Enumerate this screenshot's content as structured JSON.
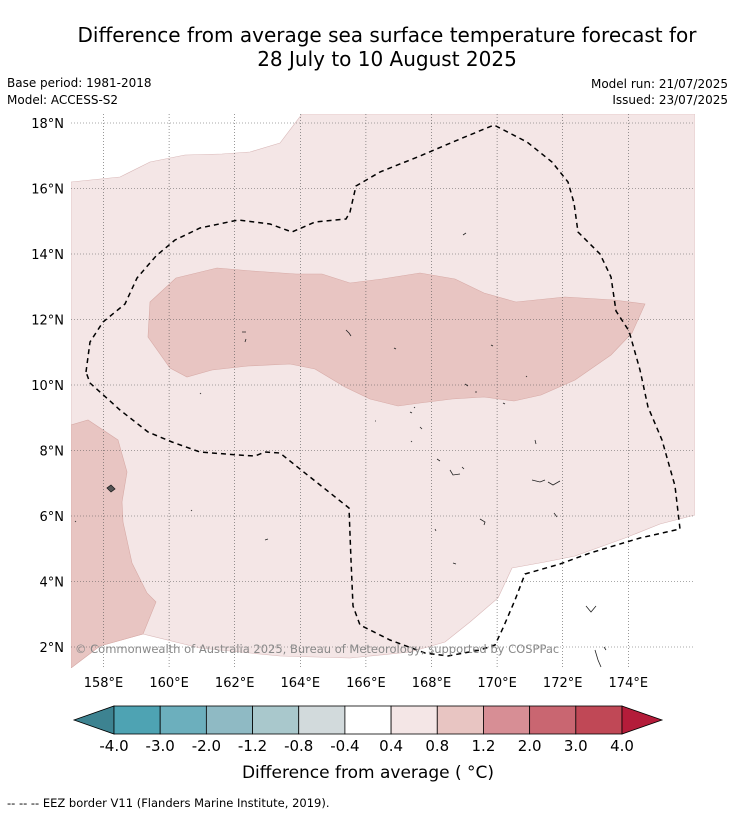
{
  "title_line1": "Difference from average sea surface temperature forecast for",
  "title_line2": "28 July to 10 August 2025",
  "base_period": "Base period: 1981-2018",
  "model": "Model: ACCESS-S2",
  "model_run": "Model run: 21/07/2025",
  "issued": "Issued: 23/07/2025",
  "lat_labels": [
    "18°N",
    "16°N",
    "14°N",
    "12°N",
    "10°N",
    "8°N",
    "6°N",
    "4°N",
    "2°N"
  ],
  "lon_labels": [
    "158°E",
    "160°E",
    "162°E",
    "164°E",
    "166°E",
    "168°E",
    "170°E",
    "172°E",
    "174°E"
  ],
  "copyright": "© Commonwealth of Australia 2025, Bureau of Meteorology, supported by COSPPac",
  "colorbar": {
    "ticks": [
      "-4.0",
      "-3.0",
      "-2.0",
      "-1.2",
      "-0.8",
      "-0.4",
      "0.4",
      "0.8",
      "1.2",
      "2.0",
      "3.0",
      "4.0"
    ],
    "colors": [
      "#3d8391",
      "#4ea3b3",
      "#6cafbd",
      "#8fbac4",
      "#a9c8cc",
      "#d2dadc",
      "#ffffff",
      "#f4e6e6",
      "#e8c5c2",
      "#d78e95",
      "#c96671",
      "#c04856",
      "#b41c3a"
    ],
    "label": "Difference from average ( °C)"
  },
  "legend_footer": "--  --  -- EEZ border V11 (Flanders Marine Institute, 2019)."
}
